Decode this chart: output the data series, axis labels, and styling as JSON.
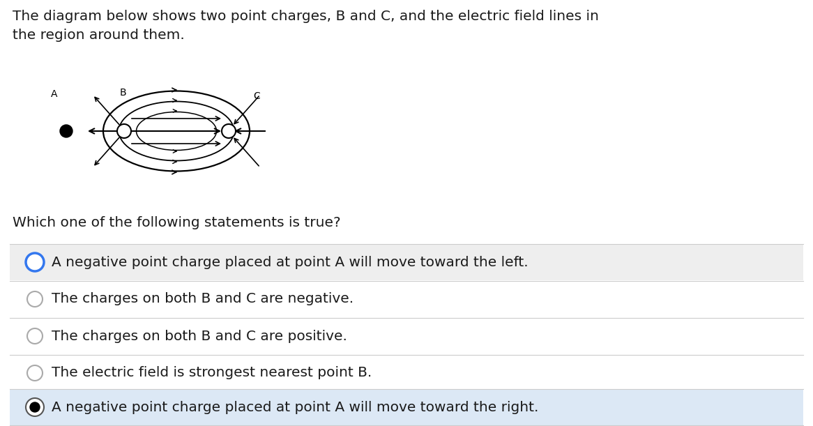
{
  "title_text": "The diagram below shows two point charges, B and C, and the electric field lines in\nthe region around them.",
  "question_text": "Which one of the following statements is true?",
  "options": [
    "A negative point charge placed at point A will move toward the left.",
    "The charges on both B and C are negative.",
    "The charges on both B and C are positive.",
    "The electric field is strongest nearest point B.",
    "A negative point charge placed at point A will move toward the right."
  ],
  "option_states": [
    "blue_circle",
    "empty_circle",
    "empty_circle",
    "empty_circle",
    "filled_circle"
  ],
  "option_bg": [
    "#eeeeee",
    "#ffffff",
    "#ffffff",
    "#ffffff",
    "#dce8f5"
  ],
  "bg_color": "#ffffff",
  "text_color": "#1a1a1a",
  "title_fontsize": 14.5,
  "option_fontsize": 14.5,
  "question_fontsize": 14.5
}
